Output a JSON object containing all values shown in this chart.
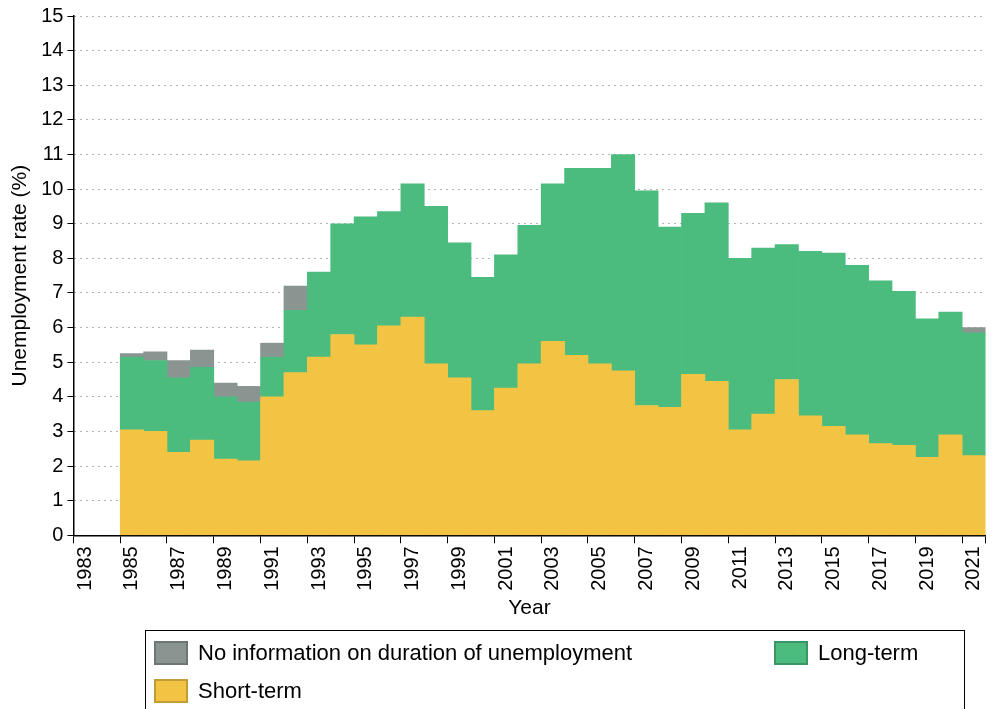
{
  "chart_data": {
    "type": "bar",
    "stacked": true,
    "xlabel": "Year",
    "ylabel": "Unemployment rate (%)",
    "categories": [
      "1983",
      null,
      "1985",
      null,
      "1987",
      null,
      "1989",
      null,
      "1991",
      null,
      "1993",
      null,
      "1995",
      null,
      "1997",
      null,
      "1999",
      null,
      "2001",
      null,
      "2003",
      null,
      "2005",
      null,
      "2007",
      null,
      "2009",
      null,
      "2011",
      null,
      "2013",
      null,
      "2015",
      null,
      "2017",
      null,
      "2019",
      null,
      "2021"
    ],
    "ylim": [
      0,
      15
    ],
    "yticks": [
      0,
      1,
      2,
      3,
      4,
      5,
      6,
      7,
      8,
      9,
      10,
      11,
      12,
      13,
      14,
      15
    ],
    "grid": "y",
    "legend": "bottom",
    "series": [
      {
        "name": "Short-term",
        "color": "#f3c443",
        "values": [
          null,
          null,
          3.05,
          3.0,
          2.4,
          2.75,
          2.2,
          2.15,
          4.0,
          4.7,
          5.15,
          5.8,
          5.5,
          6.05,
          6.3,
          4.95,
          4.55,
          3.6,
          4.25,
          4.95,
          5.6,
          5.2,
          4.95,
          4.75,
          3.75,
          3.7,
          4.65,
          4.45,
          3.05,
          3.5,
          4.5,
          3.45,
          3.15,
          2.9,
          2.65,
          2.6,
          2.25,
          2.9,
          2.3
        ]
      },
      {
        "name": "Long-term",
        "color": "#4bbb7e",
        "values": [
          null,
          null,
          2.1,
          2.05,
          2.15,
          2.1,
          1.8,
          1.7,
          1.15,
          1.8,
          2.45,
          3.2,
          3.7,
          3.3,
          3.85,
          4.55,
          3.9,
          3.85,
          3.85,
          4.0,
          4.55,
          5.4,
          5.65,
          6.25,
          6.2,
          5.2,
          4.65,
          5.15,
          4.95,
          4.8,
          3.9,
          4.75,
          5.0,
          4.9,
          4.7,
          4.45,
          4.0,
          3.55,
          3.55
        ]
      },
      {
        "name": "No information on duration of unemployment",
        "color": "#8a9490",
        "values": [
          null,
          null,
          0.1,
          0.25,
          0.5,
          0.5,
          0.4,
          0.45,
          0.4,
          0.7,
          null,
          null,
          null,
          null,
          null,
          null,
          null,
          null,
          null,
          null,
          null,
          null,
          null,
          null,
          null,
          null,
          null,
          null,
          null,
          null,
          null,
          null,
          null,
          null,
          null,
          null,
          null,
          null,
          0.15
        ]
      }
    ]
  }
}
